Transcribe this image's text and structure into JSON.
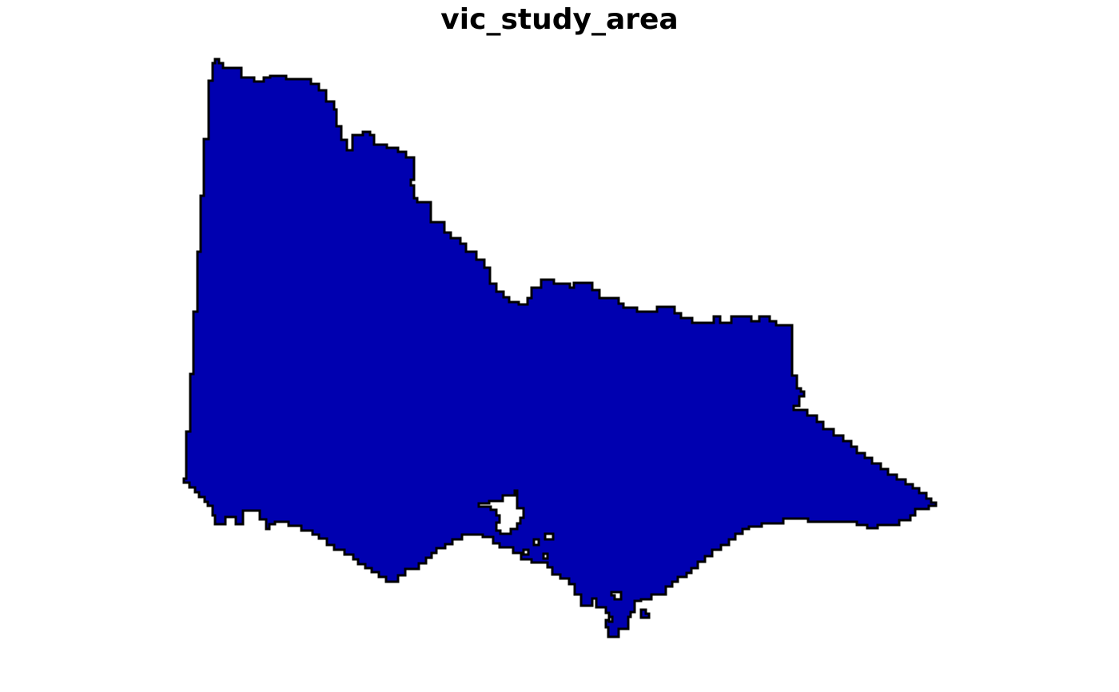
{
  "title": "vic_study_area",
  "map": {
    "fill_color": "#0000B0",
    "outline_color": "#000000",
    "background_color": "#FFFFFF"
  }
}
